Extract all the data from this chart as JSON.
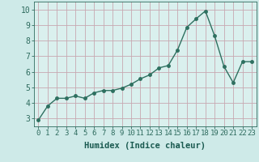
{
  "x": [
    0,
    1,
    2,
    3,
    4,
    5,
    6,
    7,
    8,
    9,
    10,
    11,
    12,
    13,
    14,
    15,
    16,
    17,
    18,
    19,
    20,
    21,
    22,
    23
  ],
  "y": [
    2.9,
    3.8,
    4.3,
    4.3,
    4.45,
    4.3,
    4.65,
    4.8,
    4.8,
    4.95,
    5.2,
    5.55,
    5.8,
    6.25,
    6.4,
    7.4,
    8.85,
    9.4,
    9.9,
    8.3,
    6.35,
    5.3,
    6.65,
    6.65
  ],
  "line_color": "#2e7060",
  "marker": "o",
  "marker_size": 2.5,
  "bg_color": "#ceeae8",
  "plot_bg_color": "#daf0ee",
  "grid_color": "#c8a8b0",
  "xlabel": "Humidex (Indice chaleur)",
  "xlim": [
    -0.5,
    23.5
  ],
  "ylim": [
    2.5,
    10.5
  ],
  "yticks": [
    3,
    4,
    5,
    6,
    7,
    8,
    9,
    10
  ],
  "xticks": [
    0,
    1,
    2,
    3,
    4,
    5,
    6,
    7,
    8,
    9,
    10,
    11,
    12,
    13,
    14,
    15,
    16,
    17,
    18,
    19,
    20,
    21,
    22,
    23
  ],
  "tick_color": "#2e6b5e",
  "label_color": "#1a5a50",
  "font_size_x": 6.5,
  "font_size_y": 7.0,
  "font_size_label": 7.5
}
